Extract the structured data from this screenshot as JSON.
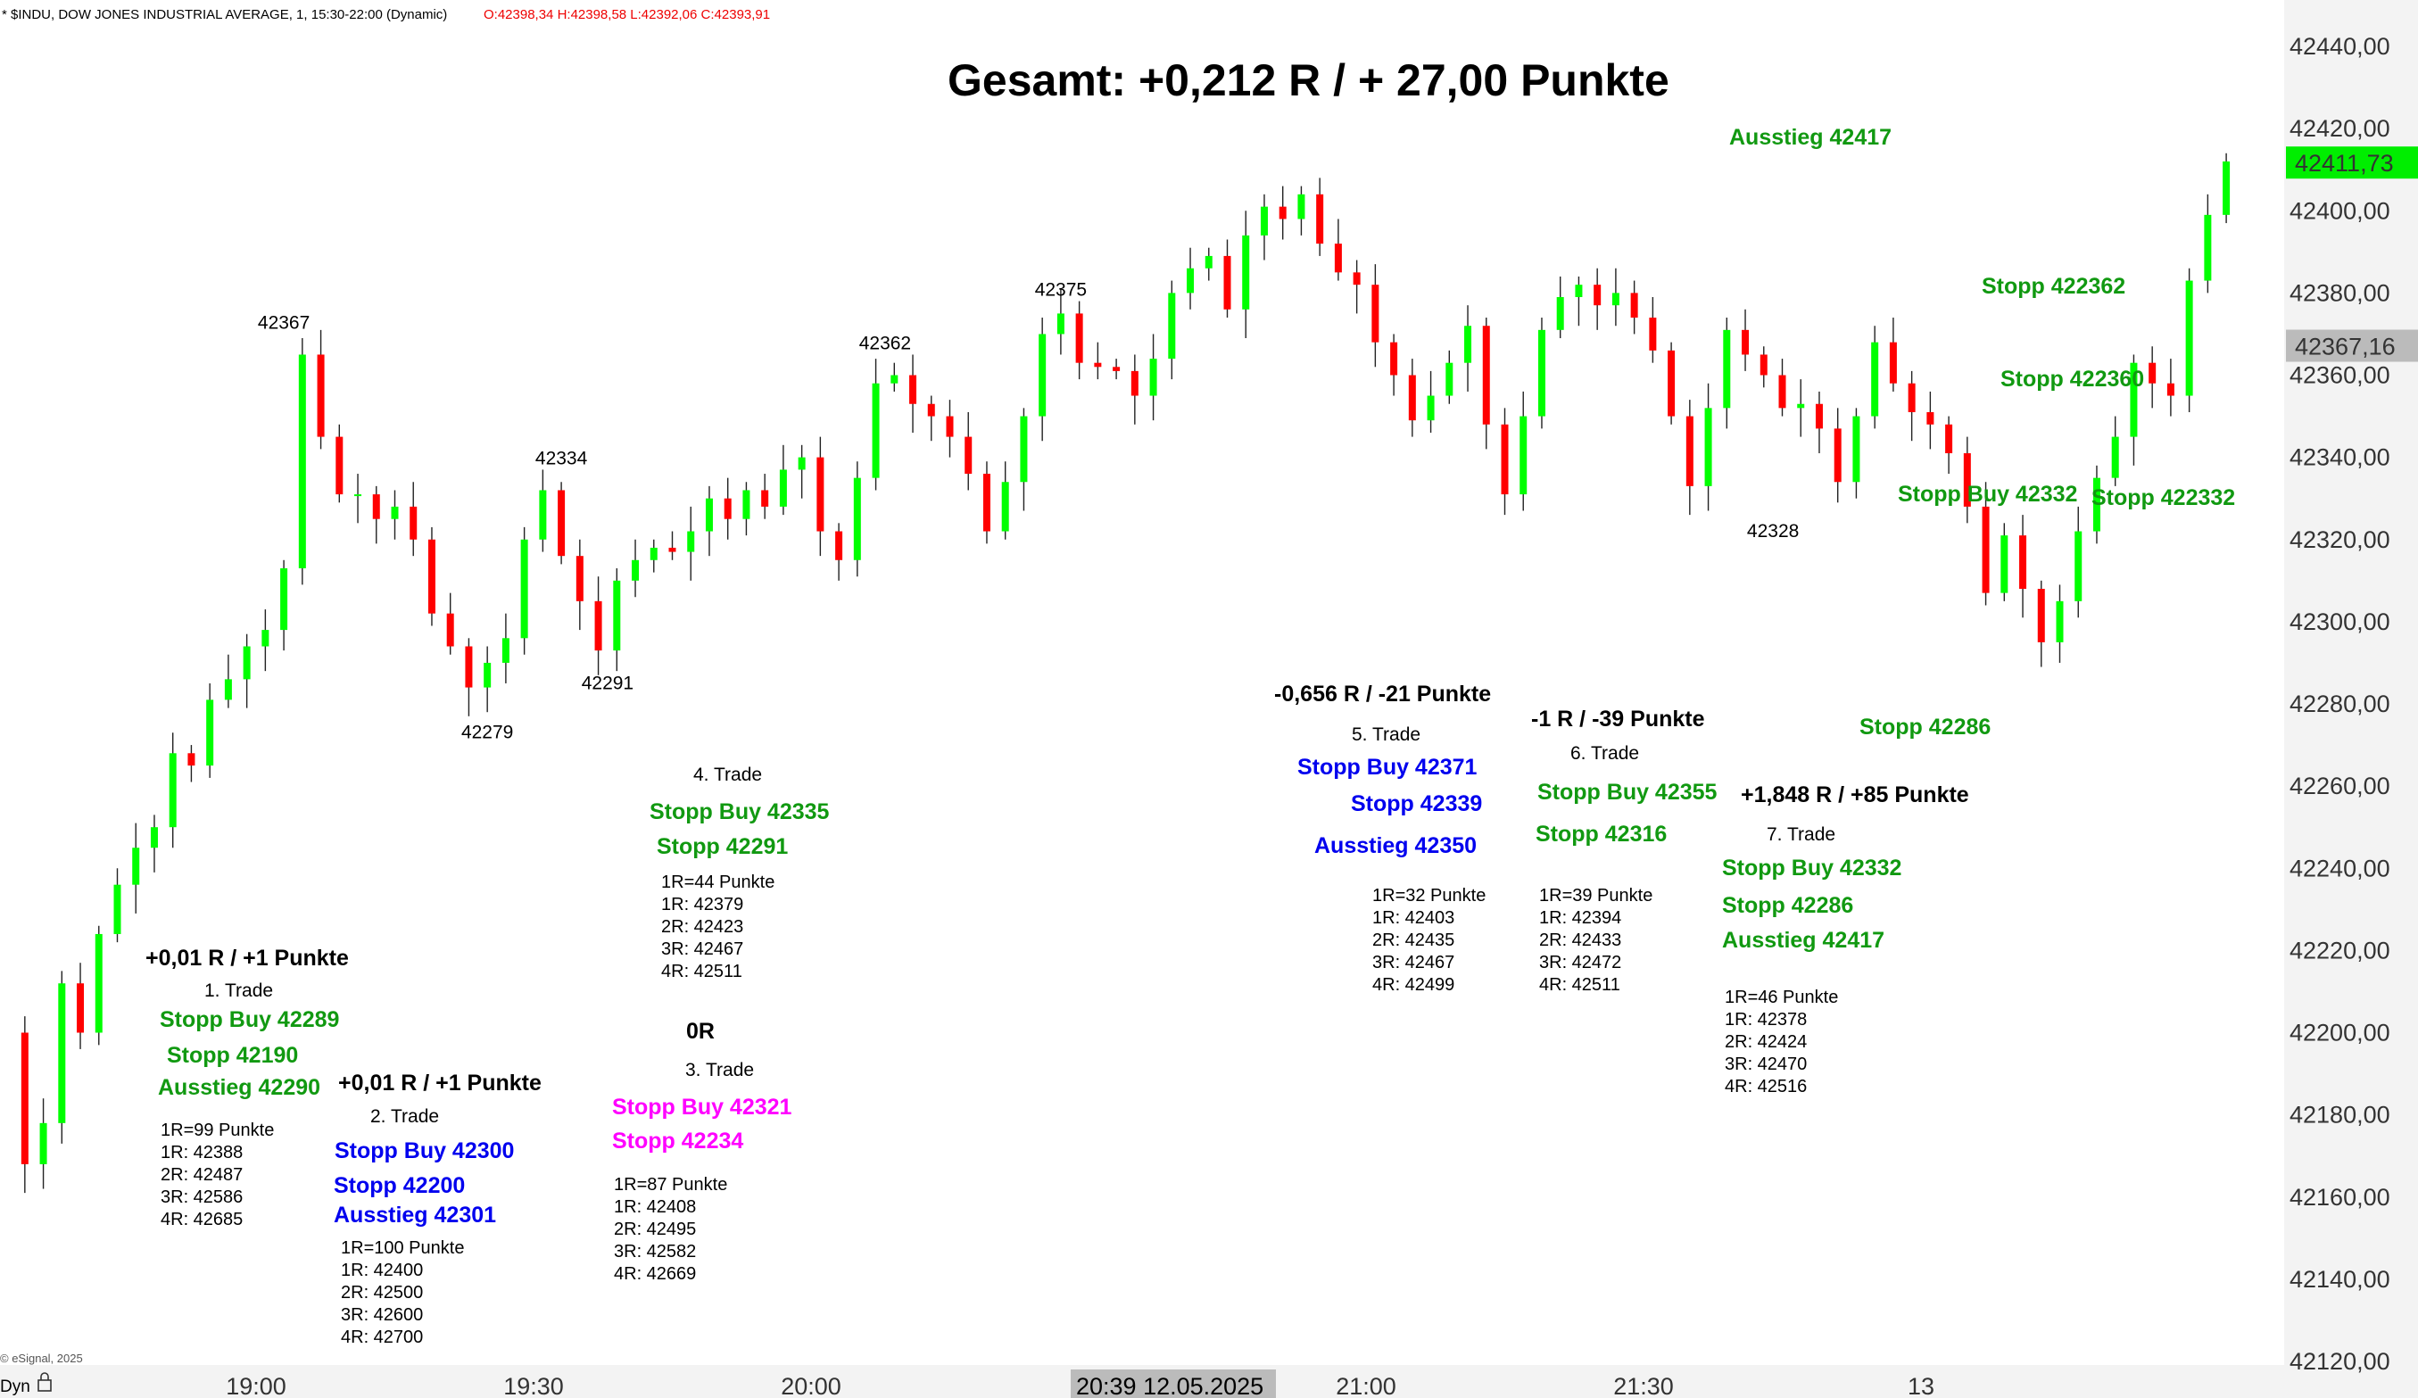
{
  "header": {
    "symbol": "* $INDU, DOW JONES INDUSTRIAL AVERAGE, 1, 15:30-22:00 (Dynamic)",
    "ohlc": "O:42398,34 H:42398,58 L:42392,06 C:42393,91"
  },
  "footer": {
    "copyright": "© eSignal, 2025",
    "dyn_label": "Dyn",
    "lock_icon": "lock-icon",
    "crosshair_time": "20:39 12.05.2025"
  },
  "colors": {
    "up": "#00ff00",
    "down": "#ff0000",
    "green_text": "#119911",
    "blue_text": "#0000ee",
    "magenta_text": "#ff00ff"
  },
  "chart_data": {
    "type": "candlestick",
    "title": "Gesamt: +0,212 R / + 27,00 Punkte",
    "ylim": [
      42120,
      42440
    ],
    "yticks": [
      "42440,00",
      "42420,00",
      "42400,00",
      "42380,00",
      "42360,00",
      "42340,00",
      "42320,00",
      "42300,00",
      "42280,00",
      "42260,00",
      "42240,00",
      "42220,00",
      "42200,00",
      "42180,00",
      "42160,00",
      "42140,00",
      "42120,00"
    ],
    "xticks": [
      {
        "label": "19:00",
        "t": "19:00"
      },
      {
        "label": "19:30",
        "t": "19:30"
      },
      {
        "label": "20:00",
        "t": "20:00"
      },
      {
        "label": "21:00",
        "t": "21:00"
      },
      {
        "label": "21:30",
        "t": "21:30"
      },
      {
        "label": "13",
        "t": "22:00"
      }
    ],
    "price_labels": [
      {
        "text": "42411,73",
        "value": 42411.73,
        "style": "last"
      },
      {
        "text": "42367,16",
        "value": 42367.16,
        "style": "cursor"
      }
    ],
    "close_path": [
      [
        "18:33",
        42200
      ],
      [
        "18:35",
        42168
      ],
      [
        "18:37",
        42178
      ],
      [
        "18:39",
        42212
      ],
      [
        "18:41",
        42200
      ],
      [
        "18:43",
        42224
      ],
      [
        "18:45",
        42236
      ],
      [
        "18:47",
        42245
      ],
      [
        "18:49",
        42250
      ],
      [
        "18:51",
        42268
      ],
      [
        "18:53",
        42265
      ],
      [
        "18:55",
        42281
      ],
      [
        "18:57",
        42286
      ],
      [
        "18:59",
        42294
      ],
      [
        "19:01",
        42298
      ],
      [
        "19:03",
        42313
      ],
      [
        "19:05",
        42365
      ],
      [
        "19:07",
        42345
      ],
      [
        "19:09",
        42331
      ],
      [
        "19:11",
        42331
      ],
      [
        "19:13",
        42325
      ],
      [
        "19:15",
        42328
      ],
      [
        "19:17",
        42320
      ],
      [
        "19:19",
        42302
      ],
      [
        "19:21",
        42294
      ],
      [
        "19:23",
        42284
      ],
      [
        "19:25",
        42290
      ],
      [
        "19:27",
        42296
      ],
      [
        "19:29",
        42320
      ],
      [
        "19:31",
        42332
      ],
      [
        "19:33",
        42316
      ],
      [
        "19:35",
        42305
      ],
      [
        "19:37",
        42293
      ],
      [
        "19:39",
        42310
      ],
      [
        "19:41",
        42315
      ],
      [
        "19:43",
        42318
      ],
      [
        "19:45",
        42317
      ],
      [
        "19:47",
        42322
      ],
      [
        "19:49",
        42330
      ],
      [
        "19:51",
        42325
      ],
      [
        "19:53",
        42332
      ],
      [
        "19:55",
        42328
      ],
      [
        "19:57",
        42337
      ],
      [
        "19:59",
        42340
      ],
      [
        "20:01",
        42322
      ],
      [
        "20:03",
        42315
      ],
      [
        "20:05",
        42335
      ],
      [
        "20:07",
        42358
      ],
      [
        "20:09",
        42360
      ],
      [
        "20:11",
        42353
      ],
      [
        "20:13",
        42350
      ],
      [
        "20:15",
        42345
      ],
      [
        "20:17",
        42336
      ],
      [
        "20:19",
        42322
      ],
      [
        "20:21",
        42334
      ],
      [
        "20:23",
        42350
      ],
      [
        "20:25",
        42370
      ],
      [
        "20:27",
        42375
      ],
      [
        "20:29",
        42363
      ],
      [
        "20:31",
        42362
      ],
      [
        "20:33",
        42361
      ],
      [
        "20:35",
        42355
      ],
      [
        "20:37",
        42364
      ],
      [
        "20:39",
        42380
      ],
      [
        "20:41",
        42386
      ],
      [
        "20:43",
        42389
      ],
      [
        "20:45",
        42376
      ],
      [
        "20:47",
        42394
      ],
      [
        "20:49",
        42401
      ],
      [
        "20:51",
        42398
      ],
      [
        "20:53",
        42404
      ],
      [
        "20:55",
        42392
      ],
      [
        "20:57",
        42385
      ],
      [
        "20:59",
        42382
      ],
      [
        "21:01",
        42368
      ],
      [
        "21:03",
        42360
      ],
      [
        "21:05",
        42349
      ],
      [
        "21:07",
        42355
      ],
      [
        "21:09",
        42363
      ],
      [
        "21:11",
        42372
      ],
      [
        "21:13",
        42348
      ],
      [
        "21:15",
        42331
      ],
      [
        "21:17",
        42350
      ],
      [
        "21:19",
        42371
      ],
      [
        "21:21",
        42379
      ],
      [
        "21:23",
        42382
      ],
      [
        "21:25",
        42377
      ],
      [
        "21:27",
        42380
      ],
      [
        "21:29",
        42374
      ],
      [
        "21:31",
        42366
      ],
      [
        "21:33",
        42350
      ],
      [
        "21:35",
        42333
      ],
      [
        "21:37",
        42352
      ],
      [
        "21:39",
        42371
      ],
      [
        "21:41",
        42365
      ],
      [
        "21:43",
        42360
      ],
      [
        "21:45",
        42352
      ],
      [
        "21:47",
        42353
      ],
      [
        "21:49",
        42347
      ],
      [
        "21:51",
        42334
      ],
      [
        "21:53",
        42350
      ],
      [
        "21:55",
        42368
      ],
      [
        "21:57",
        42358
      ],
      [
        "21:59",
        42351
      ],
      [
        "22:01",
        42348
      ],
      [
        "22:03",
        42341
      ],
      [
        "22:05",
        42328
      ],
      [
        "22:07",
        42307
      ],
      [
        "22:09",
        42321
      ],
      [
        "22:11",
        42308
      ],
      [
        "22:13",
        42295
      ],
      [
        "22:15",
        42305
      ],
      [
        "22:17",
        42322
      ],
      [
        "22:19",
        42335
      ],
      [
        "22:21",
        42345
      ],
      [
        "22:23",
        42363
      ],
      [
        "22:25",
        42358
      ],
      [
        "22:27",
        42355
      ],
      [
        "22:29",
        42383
      ],
      [
        "22:31",
        42399
      ],
      [
        "22:33",
        42412
      ]
    ],
    "price_annotations": [
      {
        "text": "42367",
        "t": "19:03",
        "y": 42367
      },
      {
        "text": "42334",
        "t": "19:33",
        "y": 42334
      },
      {
        "text": "42279",
        "t": "19:25",
        "y": 42279
      },
      {
        "text": "42291",
        "t": "19:38",
        "y": 42291
      },
      {
        "text": "42362",
        "t": "20:08",
        "y": 42362
      },
      {
        "text": "42375",
        "t": "20:27",
        "y": 42375
      },
      {
        "text": "42328",
        "t": "21:44",
        "y": 42328
      }
    ]
  },
  "annotations": {
    "title": "Gesamt: +0,212 R / + 27,00 Punkte",
    "trade1": {
      "result": "+0,01 R / +1 Punkte",
      "name": "1. Trade",
      "stop_buy": "Stopp Buy 42289",
      "stop": "Stopp 42190",
      "exit": "Ausstieg 42290",
      "r": "1R=99 Punkte",
      "r1": "1R: 42388",
      "r2": "2R: 42487",
      "r3": "3R: 42586",
      "r4": "4R: 42685"
    },
    "trade2": {
      "result": "+0,01 R / +1 Punkte",
      "name": "2. Trade",
      "stop_buy": "Stopp Buy 42300",
      "stop": "Stopp 42200",
      "exit": "Ausstieg 42301",
      "r": "1R=100 Punkte",
      "r1": "1R: 42400",
      "r2": "2R: 42500",
      "r3": "3R: 42600",
      "r4": "4R: 42700"
    },
    "trade3": {
      "result": "0R",
      "name": "3. Trade",
      "stop_buy": "Stopp Buy 42321",
      "stop": "Stopp 42234",
      "r": "1R=87 Punkte",
      "r1": "1R: 42408",
      "r2": "2R: 42495",
      "r3": "3R: 42582",
      "r4": "4R: 42669"
    },
    "trade4": {
      "name": "4. Trade",
      "stop_buy": "Stopp Buy 42335",
      "stop": "Stopp 42291",
      "r": "1R=44 Punkte",
      "r1": "1R: 42379",
      "r2": "2R: 42423",
      "r3": "3R: 42467",
      "r4": "4R: 42511"
    },
    "trade5": {
      "result": "-0,656 R / -21 Punkte",
      "name": "5. Trade",
      "stop_buy": "Stopp Buy 42371",
      "stop": "Stopp 42339",
      "exit": "Ausstieg 42350",
      "r": "1R=32 Punkte",
      "r1": "1R: 42403",
      "r2": "2R: 42435",
      "r3": "3R: 42467",
      "r4": "4R: 42499"
    },
    "trade6": {
      "result": "-1 R / -39 Punkte",
      "name": "6. Trade",
      "stop_buy": "Stopp Buy 42355",
      "stop": "Stopp 42316",
      "r": "1R=39 Punkte",
      "r1": "1R: 42394",
      "r2": "2R: 42433",
      "r3": "3R: 42472",
      "r4": "4R: 42511"
    },
    "trade7": {
      "result": "+1,848 R / +85 Punkte",
      "name": "7. Trade",
      "stop_buy": "Stopp Buy 42332",
      "stop": "Stopp 42286",
      "exit": "Ausstieg 42417",
      "r": "1R=46 Punkte",
      "r1": "1R: 42378",
      "r2": "2R: 42424",
      "r3": "3R: 42470",
      "r4": "4R: 42516"
    },
    "right_labels": {
      "ausstieg": "Ausstieg 42417",
      "stopp_a": "Stopp 422362",
      "stopp_b": "Stopp 422360",
      "stopp_buy": "Stopp Buy 42332",
      "stopp_c": "Stopp 422332",
      "stopp_d": "Stopp 42286"
    }
  }
}
